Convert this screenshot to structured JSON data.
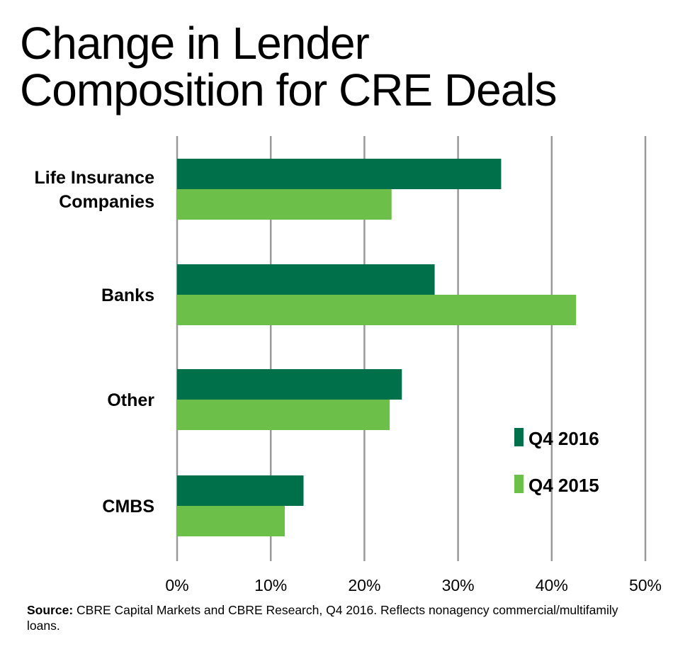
{
  "title": {
    "line1": "Change in Lender",
    "line2": "Composition for CRE Deals"
  },
  "source": {
    "label": "Source:",
    "text": " CBRE Capital Markets and CBRE Research, Q4 2016. Reflects nonagency commercial/multifamily loans."
  },
  "chart_data": {
    "type": "bar",
    "orientation": "horizontal",
    "categories": [
      [
        "Life Insurance",
        "Companies"
      ],
      [
        "Banks"
      ],
      [
        "Other"
      ],
      [
        "CMBS"
      ]
    ],
    "series": [
      {
        "name": "Q4 2016",
        "color": "#00704a",
        "values": [
          34.6,
          27.5,
          24.0,
          13.5
        ]
      },
      {
        "name": "Q4 2015",
        "color": "#6cc04a",
        "values": [
          22.9,
          42.6,
          22.7,
          11.5
        ]
      }
    ],
    "xlim": [
      0,
      50
    ],
    "xticks": [
      0,
      10,
      20,
      30,
      40,
      50
    ],
    "xtick_labels": [
      "0%",
      "10%",
      "20%",
      "30%",
      "40%",
      "50%"
    ],
    "grid": "vertical",
    "grid_color": "#999999",
    "legend_position": "bottom-right"
  }
}
